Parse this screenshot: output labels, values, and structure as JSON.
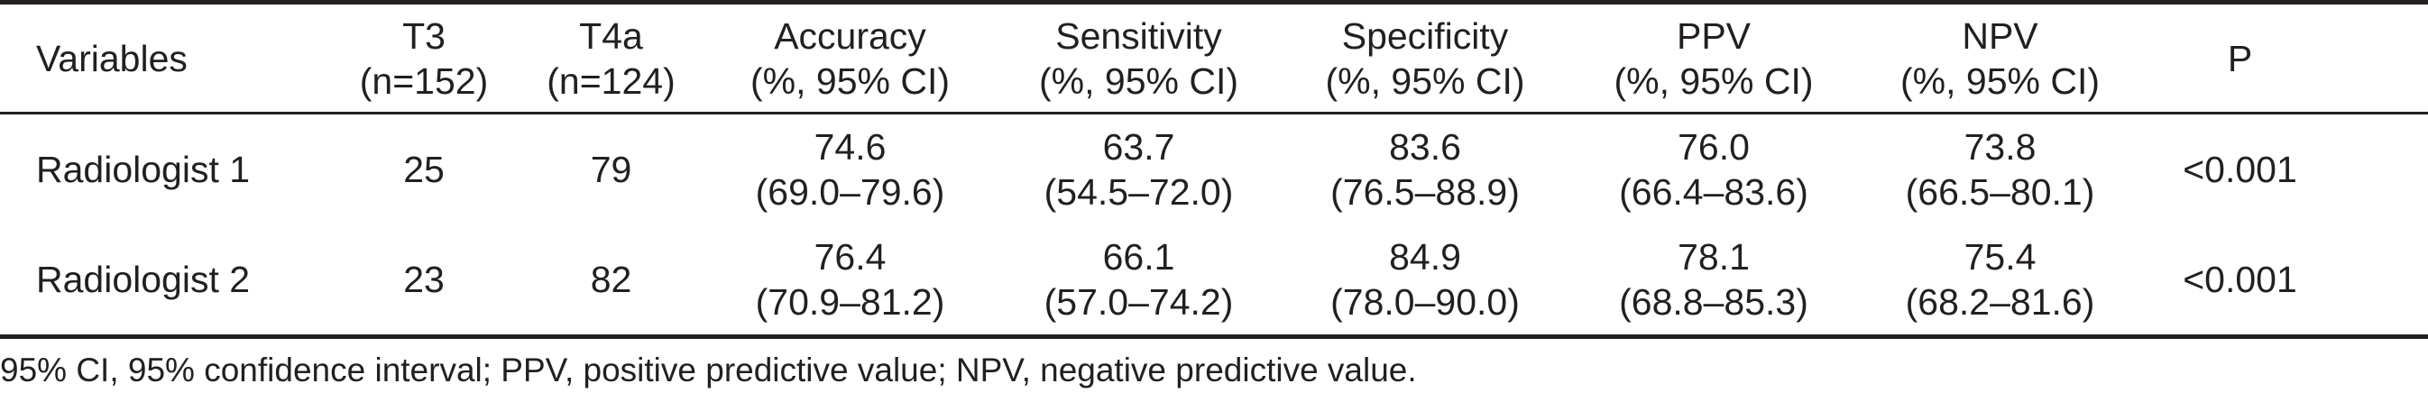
{
  "table": {
    "headers": [
      {
        "line1": "Variables",
        "line2": ""
      },
      {
        "line1": "T3",
        "line2": "(n=152)"
      },
      {
        "line1": "T4a",
        "line2": "(n=124)"
      },
      {
        "line1": "Accuracy",
        "line2": "(%, 95% CI)"
      },
      {
        "line1": "Sensitivity",
        "line2": "(%, 95% CI)"
      },
      {
        "line1": "Specificity",
        "line2": "(%, 95% CI)"
      },
      {
        "line1": "PPV",
        "line2": "(%, 95% CI)"
      },
      {
        "line1": "NPV",
        "line2": "(%, 95% CI)"
      },
      {
        "line1": "P",
        "line2": ""
      }
    ],
    "rows": [
      {
        "variable": "Radiologist 1",
        "t3": "25",
        "t4a": "79",
        "accuracy": {
          "value": "74.6",
          "ci": "(69.0–79.6)"
        },
        "sensitivity": {
          "value": "63.7",
          "ci": "(54.5–72.0)"
        },
        "specificity": {
          "value": "83.6",
          "ci": "(76.5–88.9)"
        },
        "ppv": {
          "value": "76.0",
          "ci": "(66.4–83.6)"
        },
        "npv": {
          "value": "73.8",
          "ci": "(66.5–80.1)"
        },
        "p": "<0.001"
      },
      {
        "variable": "Radiologist 2",
        "t3": "23",
        "t4a": "82",
        "accuracy": {
          "value": "76.4",
          "ci": "(70.9–81.2)"
        },
        "sensitivity": {
          "value": "66.1",
          "ci": "(57.0–74.2)"
        },
        "specificity": {
          "value": "84.9",
          "ci": "(78.0–90.0)"
        },
        "ppv": {
          "value": "78.1",
          "ci": "(68.8–85.3)"
        },
        "npv": {
          "value": "75.4",
          "ci": "(68.2–81.6)"
        },
        "p": "<0.001"
      }
    ]
  },
  "footnote": "95% CI, 95% confidence interval; PPV, positive predictive value; NPV, negative predictive value."
}
